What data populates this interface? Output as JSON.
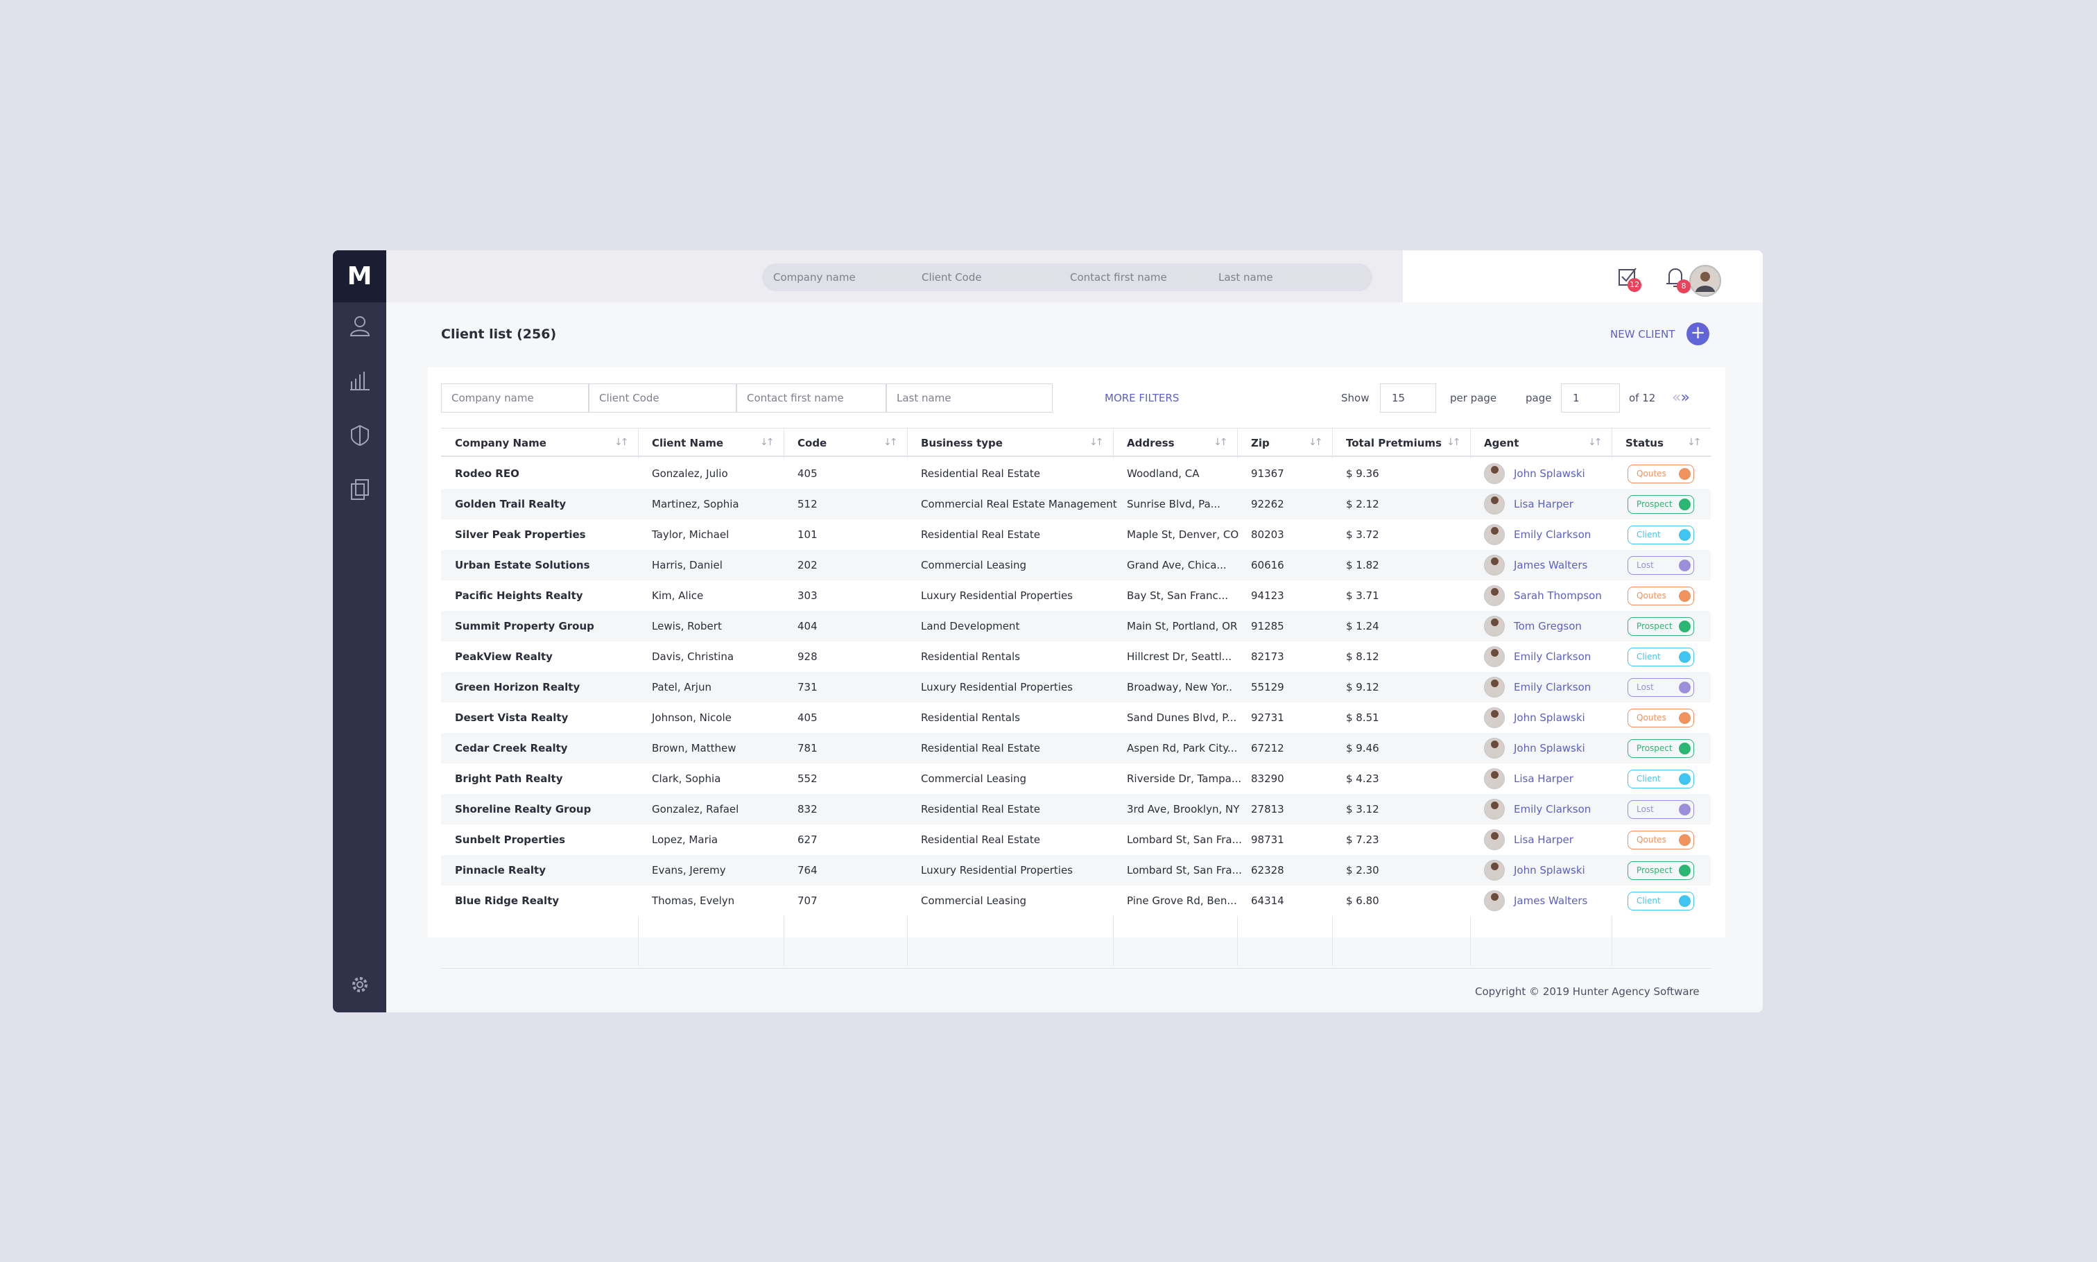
{
  "search": {
    "placeholders": [
      "Company name",
      "Client Code",
      "Contact first name",
      "Last name"
    ]
  },
  "notifications": {
    "tasks": 12,
    "alerts": 8
  },
  "logo": "M",
  "page_title": "Client list (256)",
  "new_client": "NEW CLIENT",
  "filters": {
    "placeholders": [
      "Company name",
      "Client Code",
      "Contact first name",
      "Last name"
    ],
    "more": "MORE FILTERS",
    "show": "Show",
    "per_page_value": 15,
    "per_page": "per page",
    "page_label": "page",
    "page_value": 1,
    "of_pages": "of 12"
  },
  "table": {
    "columns": [
      "Company Name",
      "Client Name",
      "Code",
      "Business type",
      "Address",
      "Zip",
      "Total Pretmiums",
      "Agent",
      "Status"
    ],
    "rows": [
      {
        "cells": [
          "Rodeo REO",
          "Gonzalez, Julio",
          "405",
          "Residential Real Estate",
          "Woodland, CA",
          "91367",
          "$ 9.36",
          "John Splawski",
          "Qoutes"
        ],
        "status_color": "#f0915e"
      },
      {
        "cells": [
          "Golden Trail Realty",
          "Martinez, Sophia",
          "512",
          "Commercial Real Estate Management",
          "Sunrise Blvd, Pa...",
          "92262",
          "$ 2.12",
          "Lisa Harper",
          "Prospect"
        ],
        "status_color": "#2bb673"
      },
      {
        "cells": [
          "Silver Peak Properties",
          "Taylor, Michael",
          "101",
          "Residential Real Estate",
          "Maple St, Denver, CO",
          "80203",
          "$ 3.72",
          "Emily Clarkson",
          "Client"
        ],
        "status_color": "#3ec6f0"
      },
      {
        "cells": [
          "Urban Estate Solutions",
          "Harris, Daniel",
          "202",
          "Commercial Leasing",
          "Grand Ave, Chica...",
          "60616",
          "$ 1.82",
          "James Walters",
          "Lost"
        ],
        "status_color": "#9a8fd8"
      },
      {
        "cells": [
          "Pacific Heights Realty",
          "Kim, Alice",
          "303",
          "Luxury Residential Properties",
          "Bay St, San Franc...",
          "94123",
          "$ 3.71",
          "Sarah Thompson",
          "Qoutes"
        ],
        "status_color": "#f0915e"
      },
      {
        "cells": [
          "Summit Property Group",
          "Lewis, Robert",
          "404",
          "Land Development",
          "Main St, Portland, OR",
          "91285",
          "$ 1.24",
          "Tom Gregson",
          "Prospect"
        ],
        "status_color": "#2bb673"
      },
      {
        "cells": [
          "PeakView Realty",
          "Davis, Christina",
          "928",
          "Residential Rentals",
          "Hillcrest Dr, Seattl...",
          "82173",
          "$ 8.12",
          "Emily Clarkson",
          "Client"
        ],
        "status_color": "#3ec6f0"
      },
      {
        "cells": [
          "Green Horizon Realty",
          "Patel, Arjun",
          "731",
          "Luxury Residential Properties",
          "Broadway, New Yor..",
          "55129",
          "$ 9.12",
          "Emily Clarkson",
          "Lost"
        ],
        "status_color": "#9a8fd8"
      },
      {
        "cells": [
          "Desert Vista Realty",
          "Johnson, Nicole",
          "405",
          "Residential Rentals",
          "Sand Dunes Blvd, P...",
          "92731",
          "$ 8.51",
          "John Splawski",
          "Qoutes"
        ],
        "status_color": "#f0915e"
      },
      {
        "cells": [
          "Cedar Creek Realty",
          "Brown, Matthew",
          "781",
          "Residential Real Estate",
          "Aspen Rd, Park City...",
          "67212",
          "$ 9.46",
          "John Splawski",
          "Prospect"
        ],
        "status_color": "#2bb673"
      },
      {
        "cells": [
          "Bright Path Realty",
          "Clark, Sophia",
          "552",
          "Commercial Leasing",
          "Riverside Dr, Tampa...",
          "83290",
          "$ 4.23",
          "Lisa Harper",
          "Client"
        ],
        "status_color": "#3ec6f0"
      },
      {
        "cells": [
          "Shoreline Realty Group",
          "Gonzalez, Rafael",
          "832",
          "Residential Real Estate",
          "3rd Ave, Brooklyn, NY",
          "27813",
          "$ 3.12",
          "Emily Clarkson",
          "Lost"
        ],
        "status_color": "#9a8fd8"
      },
      {
        "cells": [
          "Sunbelt Properties",
          "Lopez, Maria",
          "627",
          "Residential Real Estate",
          "Lombard St, San Fra...",
          "98731",
          "$ 7.23",
          "Lisa Harper",
          "Qoutes"
        ],
        "status_color": "#f0915e"
      },
      {
        "cells": [
          "Pinnacle Realty",
          "Evans, Jeremy",
          "764",
          "Luxury Residential Properties",
          "Lombard St, San Fra...",
          "62328",
          "$ 2.30",
          "John Splawski",
          "Prospect"
        ],
        "status_color": "#2bb673"
      },
      {
        "cells": [
          "Blue Ridge Realty",
          "Thomas, Evelyn",
          "707",
          "Commercial Leasing",
          "Pine Grove Rd, Ben...",
          "64314",
          "$ 6.80",
          "James Walters",
          "Client"
        ],
        "status_color": "#3ec6f0"
      }
    ]
  },
  "footer": "Copyright © 2019 Hunter Agency Software"
}
